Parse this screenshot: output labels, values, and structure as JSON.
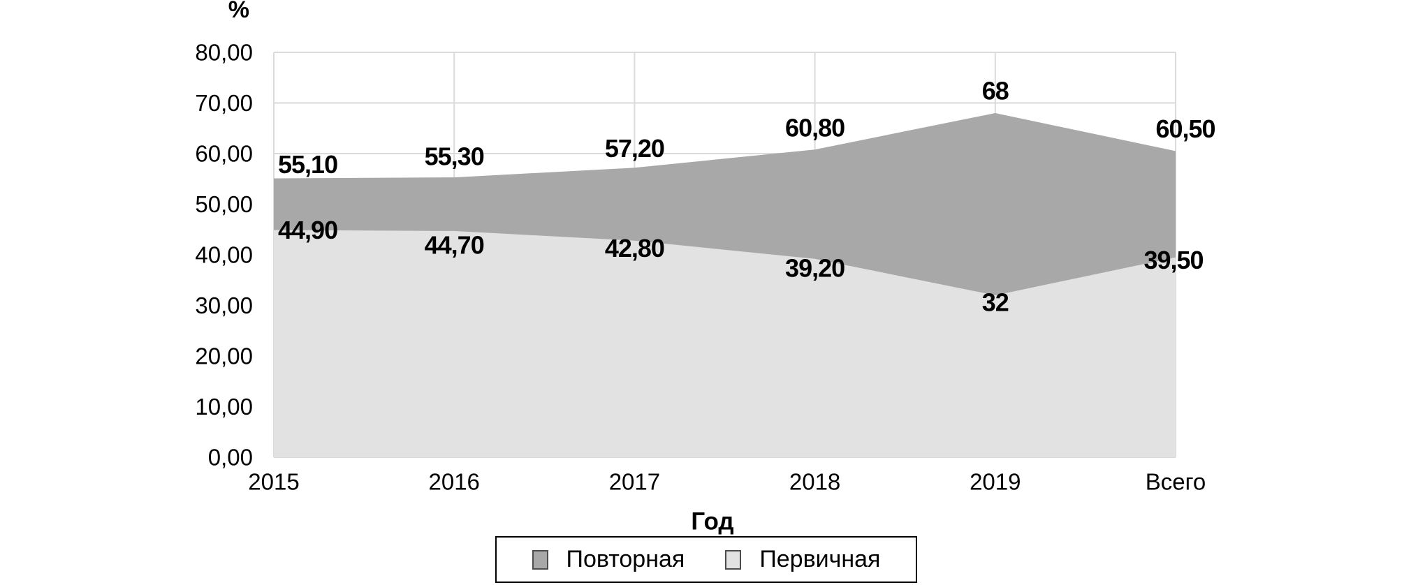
{
  "chart_data": {
    "type": "area",
    "overlapping": true,
    "categories": [
      "2015",
      "2016",
      "2017",
      "2018",
      "2019",
      "Всего"
    ],
    "series": [
      {
        "name": "Повторная",
        "values": [
          55.1,
          55.3,
          57.2,
          60.8,
          68,
          60.5
        ],
        "labels": [
          "55,10",
          "55,30",
          "57,20",
          "60,80",
          "68",
          "60,50"
        ],
        "color": "#a8a8a8"
      },
      {
        "name": "Первичная",
        "values": [
          44.9,
          44.7,
          42.8,
          39.2,
          32,
          39.5
        ],
        "labels": [
          "44,90",
          "44,70",
          "42,80",
          "39,20",
          "32",
          "39,50"
        ],
        "color": "#e2e2e2"
      }
    ],
    "title": "",
    "xlabel": "Год",
    "ylabel": "%",
    "ylim": [
      0,
      80
    ],
    "ytick_step": 10,
    "ytick_labels": [
      "0,00",
      "10,00",
      "20,00",
      "30,00",
      "40,00",
      "50,00",
      "60,00",
      "70,00",
      "80,00"
    ],
    "grid": true,
    "grid_color": "#dadada",
    "text_color": "#000000",
    "legend_position": "bottom"
  },
  "legend": {
    "items": [
      {
        "label": "Повторная",
        "color": "#a8a8a8"
      },
      {
        "label": "Первичная",
        "color": "#e2e2e2"
      }
    ]
  }
}
